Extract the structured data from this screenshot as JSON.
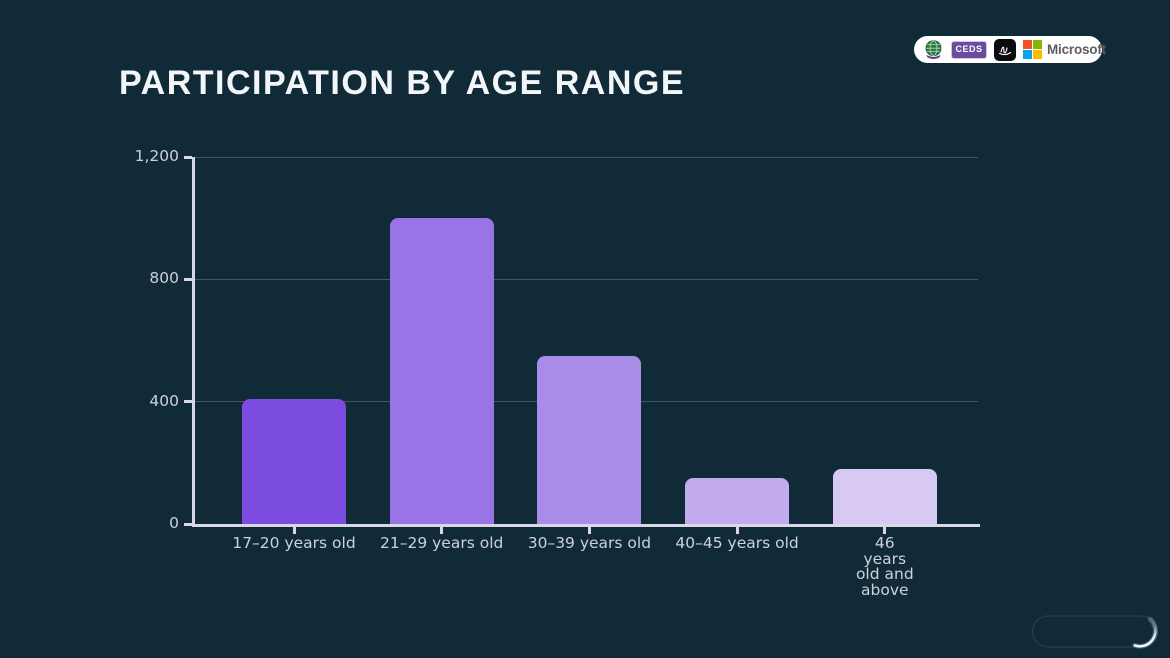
{
  "chart_data": {
    "type": "bar",
    "title": "PARTICIPATION BY AGE RANGE",
    "categories": [
      "17–20 years old",
      "21–29 years old",
      "30–39 years old",
      "40–45 years old",
      "46 years old and above"
    ],
    "values": [
      410,
      1000,
      550,
      150,
      180
    ],
    "bar_colors": [
      "#7C4CE1",
      "#9A74E7",
      "#A98CE8",
      "#C1AAEE",
      "#D8C9F4"
    ],
    "xlabel": "",
    "ylabel": "",
    "ylim": [
      0,
      1200
    ],
    "yticks": [
      0,
      400,
      800,
      1200
    ],
    "ytick_labels": [
      "0",
      "400",
      "800",
      "1,200"
    ],
    "grid": true,
    "legend": false
  },
  "logos": {
    "seal_icon": "globe-seal-icon",
    "ceds_label": "CEDS",
    "signature_icon": "signature-icon",
    "microsoft_label": "Microsoft",
    "microsoft_colors": [
      "#F25022",
      "#7FBA00",
      "#00A4EF",
      "#FFB900"
    ]
  },
  "colors": {
    "background": "#112A38",
    "axis": "#D9D6E6",
    "grid_line": "rgba(214,218,230,0.25)",
    "tick_text": "#CBD1DC",
    "title_text": "#F3F6F8",
    "spinner_outline": "#1E3C56",
    "spinner_highlight": "#E6F2FF"
  }
}
